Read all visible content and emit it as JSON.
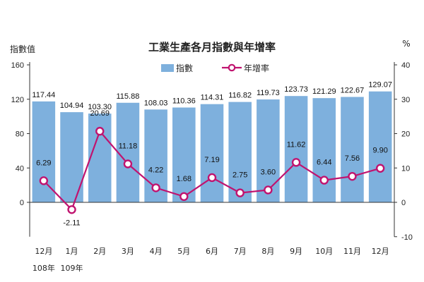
{
  "chart_data": {
    "type": "bar",
    "title": "工業生產各月指數與年增率",
    "ylabel_left": "指數值",
    "ylabel_right": "%",
    "ylim_left": [
      0,
      160
    ],
    "yticks_left": [
      "160",
      "120",
      "80",
      "40",
      "0"
    ],
    "ylim_right": [
      -10,
      40
    ],
    "yticks_right": [
      "40",
      "30",
      "20",
      "10",
      "0",
      "-10"
    ],
    "categories": [
      "12月",
      "1月",
      "2月",
      "3月",
      "4月",
      "5月",
      "6月",
      "7月",
      "8月",
      "9月",
      "10月",
      "11月",
      "12月"
    ],
    "year_labels": [
      {
        "text": "108年",
        "category_index": 0
      },
      {
        "text": "109年",
        "category_index": 1
      }
    ],
    "legend_position": "top",
    "series": [
      {
        "name": "指數",
        "type": "bar",
        "axis": "left",
        "color": "#7eb0dd",
        "values": [
          117.44,
          104.94,
          103.3,
          115.88,
          108.03,
          110.36,
          114.31,
          116.82,
          119.73,
          123.73,
          121.29,
          122.67,
          129.07
        ],
        "labels": [
          "117.44",
          "104.94",
          "103.30",
          "115.88",
          "108.03",
          "110.36",
          "114.31",
          "116.82",
          "119.73",
          "123.73",
          "121.29",
          "122.67",
          "129.07"
        ]
      },
      {
        "name": "年增率",
        "type": "line",
        "axis": "right",
        "color": "#c0136f",
        "values": [
          6.29,
          -2.11,
          20.69,
          11.18,
          4.22,
          1.68,
          7.19,
          2.75,
          3.6,
          11.62,
          6.44,
          7.56,
          9.9
        ],
        "labels": [
          "6.29",
          "-2.11",
          "20.69",
          "11.18",
          "4.22",
          "1.68",
          "7.19",
          "2.75",
          "3.60",
          "11.62",
          "6.44",
          "7.56",
          "9.90"
        ]
      }
    ]
  }
}
